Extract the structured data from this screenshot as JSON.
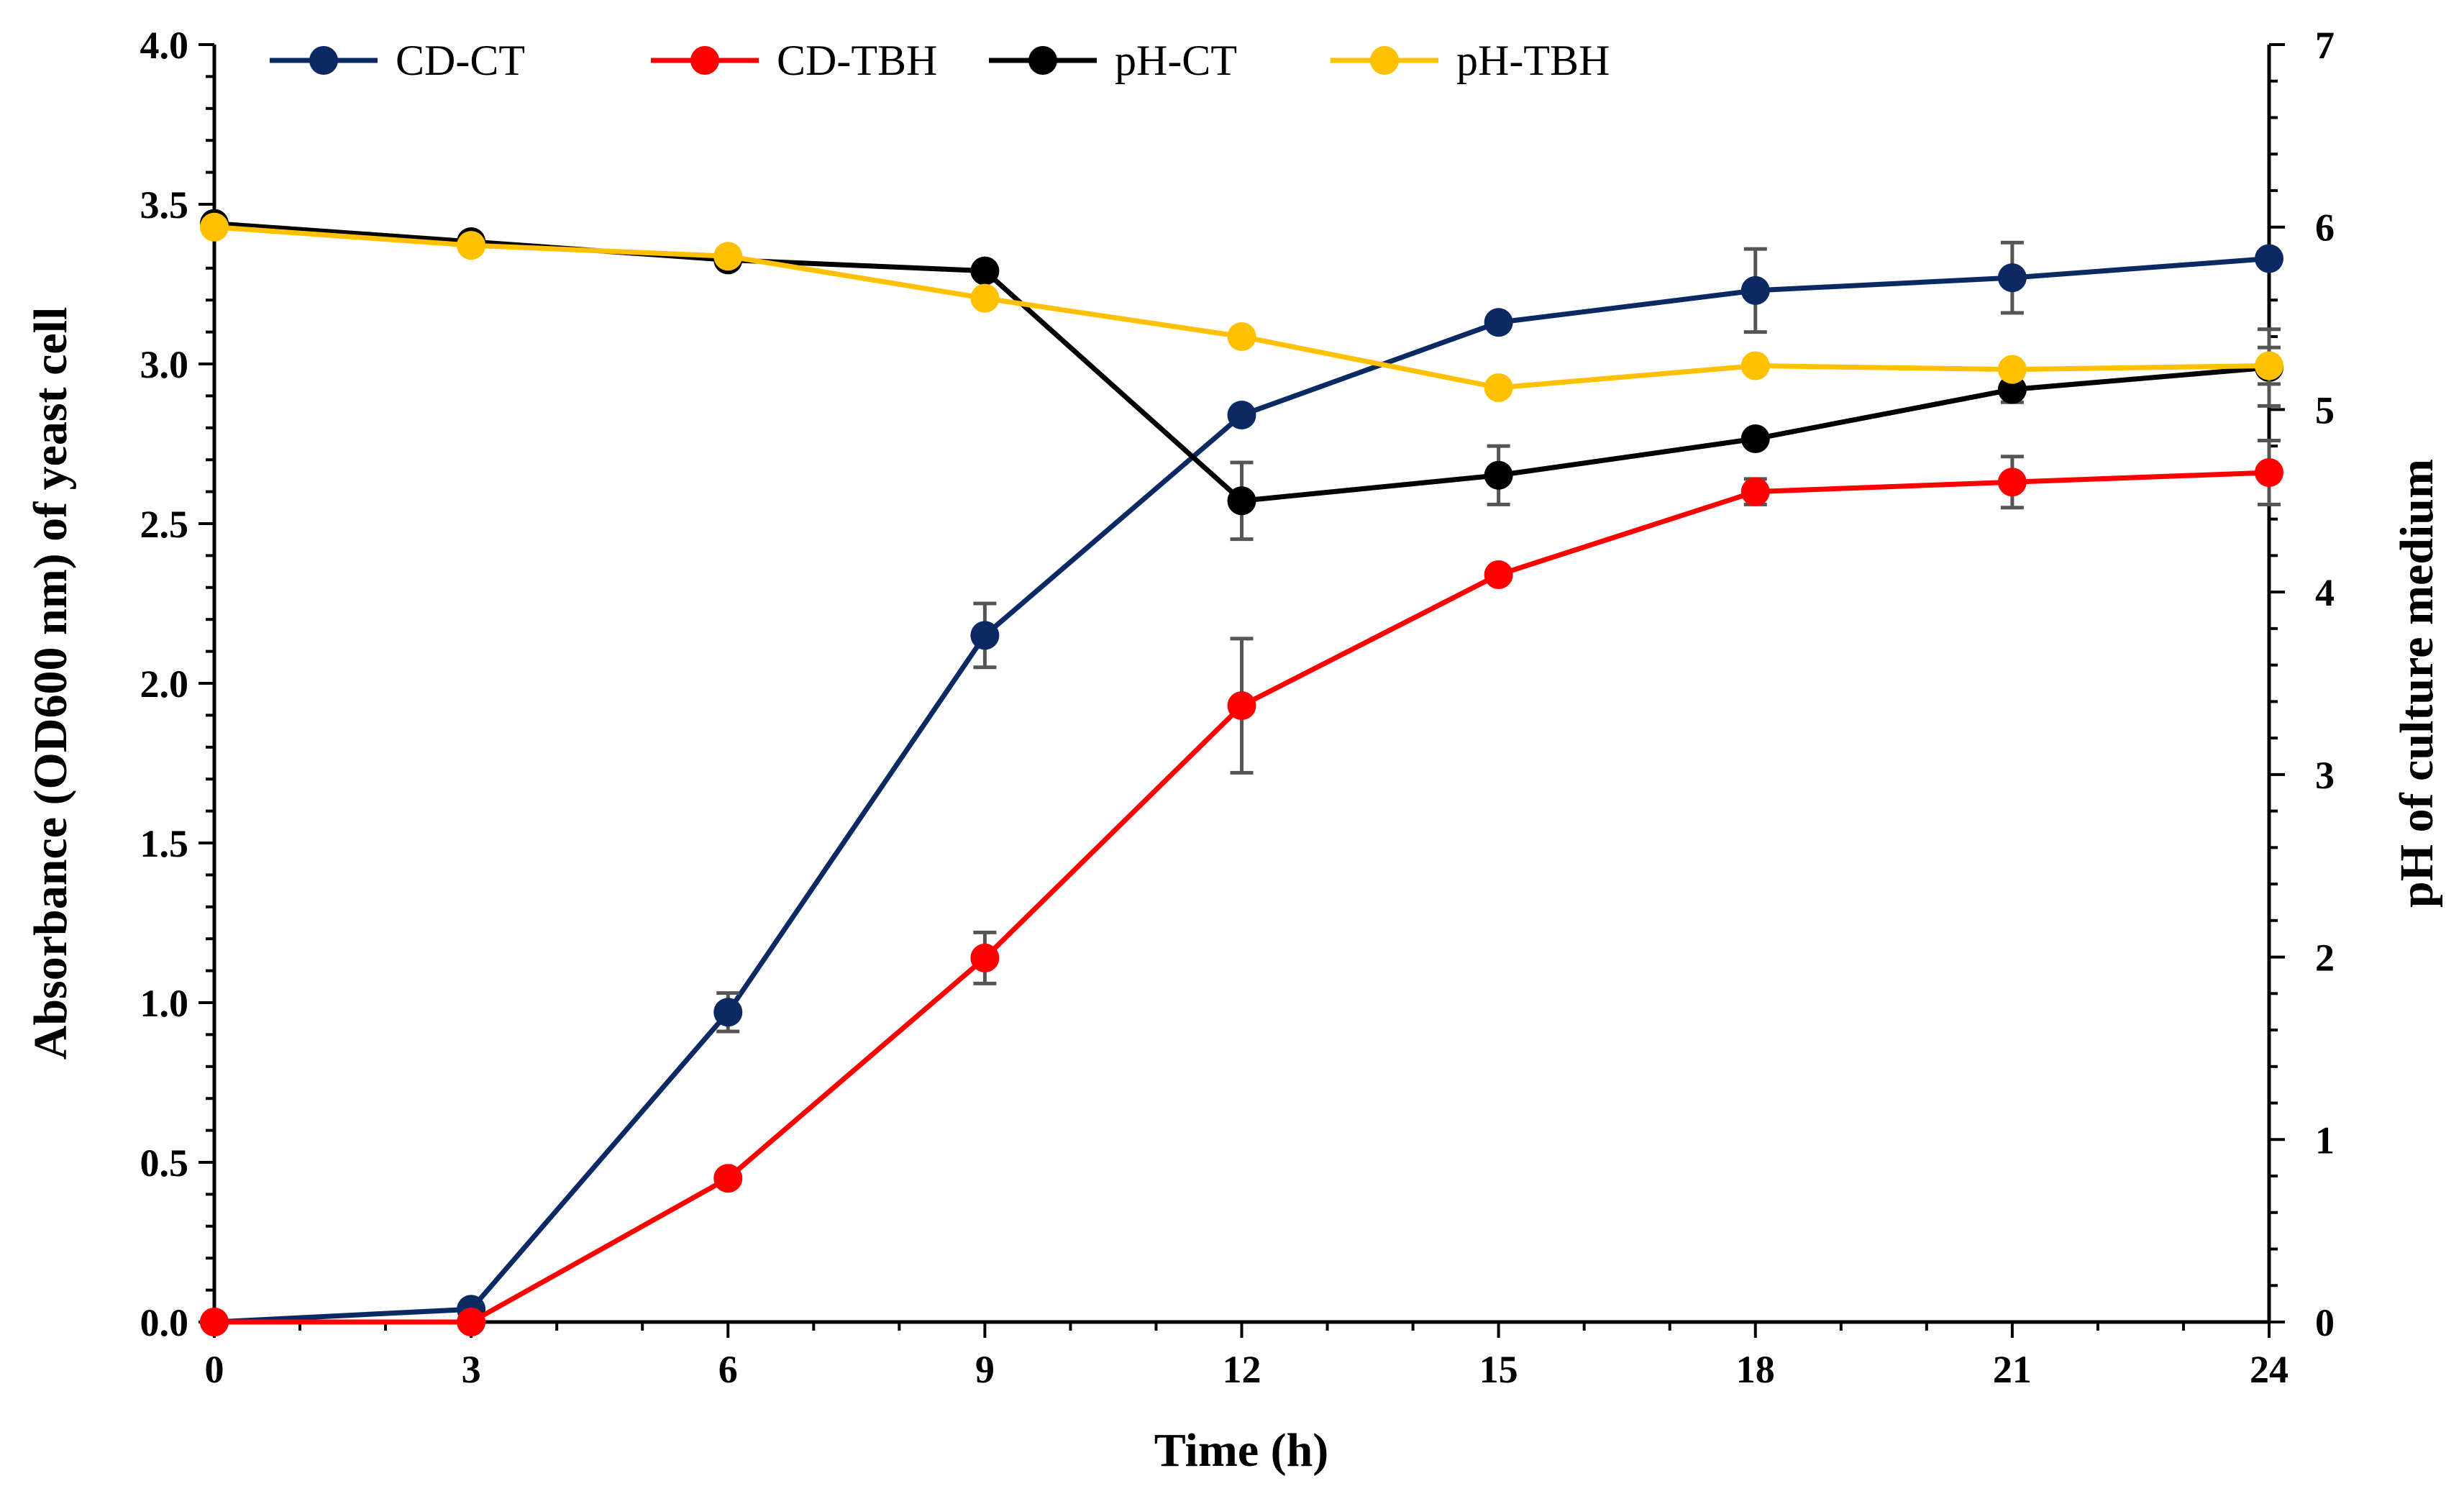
{
  "chart_data": {
    "type": "line",
    "title": "",
    "xlabel": "Time (h)",
    "ylabel_left": "Absorbance (OD600 nm) of yeast cell",
    "ylabel_right": "pH of culture medium",
    "x": [
      0,
      3,
      6,
      9,
      12,
      15,
      18,
      21,
      24
    ],
    "x_ticks": [
      "0",
      "3",
      "6",
      "9",
      "12",
      "15",
      "18",
      "21",
      "24"
    ],
    "xlim": [
      0,
      24
    ],
    "ylim_left": [
      0,
      4.0
    ],
    "ylim_right": [
      0,
      7
    ],
    "y_ticks_left": [
      "0.0",
      "0.5",
      "1.0",
      "1.5",
      "2.0",
      "2.5",
      "3.0",
      "3.5",
      "4.0"
    ],
    "y_ticks_right": [
      "0",
      "1",
      "2",
      "3",
      "4",
      "5",
      "6",
      "7"
    ],
    "grid": false,
    "legend_position": "top",
    "series": [
      {
        "name": "CD-CT",
        "axis": "left",
        "color": "#0b2a63",
        "values": [
          0.0,
          0.04,
          0.97,
          2.15,
          2.84,
          3.13,
          3.23,
          3.27,
          3.33
        ],
        "errors": [
          0,
          0.01,
          0.06,
          0.1,
          0.02,
          0.02,
          0.13,
          0.11,
          0.0
        ]
      },
      {
        "name": "CD-TBH",
        "axis": "left",
        "color": "#ff0000",
        "values": [
          0.0,
          0.0,
          0.45,
          1.14,
          1.93,
          2.34,
          2.6,
          2.63,
          2.66
        ],
        "errors": [
          0,
          0,
          0.01,
          0.08,
          0.21,
          0.02,
          0.04,
          0.08,
          0.1
        ]
      },
      {
        "name": "pH-CT",
        "axis": "right",
        "color": "#000000",
        "values": [
          6.02,
          5.92,
          5.82,
          5.76,
          4.5,
          4.64,
          4.84,
          5.11,
          5.23
        ],
        "errors": [
          0,
          0,
          0,
          0,
          0.21,
          0.16,
          0,
          0.07,
          0.21
        ]
      },
      {
        "name": "pH-TBH",
        "axis": "right",
        "color": "#ffc000",
        "values": [
          6.0,
          5.9,
          5.84,
          5.61,
          5.4,
          5.12,
          5.24,
          5.22,
          5.24
        ],
        "errors": [
          0,
          0,
          0,
          0,
          0,
          0,
          0,
          0,
          0.1
        ]
      }
    ]
  }
}
